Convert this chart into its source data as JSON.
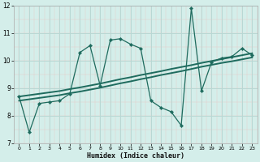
{
  "xlabel": "Humidex (Indice chaleur)",
  "xlim": [
    -0.5,
    23.5
  ],
  "ylim": [
    7,
    12
  ],
  "yticks": [
    7,
    8,
    9,
    10,
    11,
    12
  ],
  "xticks": [
    0,
    1,
    2,
    3,
    4,
    5,
    6,
    7,
    8,
    9,
    10,
    11,
    12,
    13,
    14,
    15,
    16,
    17,
    18,
    19,
    20,
    21,
    22,
    23
  ],
  "bg_color": "#d4eeea",
  "grid_major_color": "#b8d8d4",
  "grid_minor_color": "#c8e4e0",
  "line_color": "#1e6b5e",
  "series_wavy": {
    "x": [
      0,
      1,
      2,
      3,
      4,
      5,
      6,
      7,
      8,
      9,
      10,
      11,
      12,
      13,
      14,
      15,
      16,
      17,
      18,
      19,
      20,
      21,
      22,
      23
    ],
    "y": [
      8.7,
      7.4,
      8.45,
      8.5,
      8.55,
      8.8,
      10.3,
      10.55,
      9.1,
      10.75,
      10.8,
      10.6,
      10.45,
      8.55,
      8.3,
      8.15,
      7.65,
      11.9,
      8.9,
      9.95,
      10.1,
      10.15,
      10.45,
      10.2
    ]
  },
  "series_trend1": {
    "x": [
      0,
      1,
      2,
      3,
      4,
      5,
      6,
      7,
      8,
      9,
      10,
      11,
      12,
      13,
      14,
      15,
      16,
      17,
      18,
      19,
      20,
      21,
      22,
      23
    ],
    "y": [
      8.55,
      8.6,
      8.65,
      8.7,
      8.75,
      8.82,
      8.88,
      8.95,
      9.02,
      9.1,
      9.18,
      9.25,
      9.33,
      9.4,
      9.48,
      9.55,
      9.62,
      9.7,
      9.78,
      9.85,
      9.92,
      9.98,
      10.05,
      10.12
    ]
  },
  "series_trend2": {
    "x": [
      0,
      1,
      2,
      3,
      4,
      5,
      6,
      7,
      8,
      9,
      10,
      11,
      12,
      13,
      14,
      15,
      16,
      17,
      18,
      19,
      20,
      21,
      22,
      23
    ],
    "y": [
      8.7,
      8.75,
      8.8,
      8.85,
      8.9,
      8.97,
      9.03,
      9.1,
      9.17,
      9.25,
      9.33,
      9.4,
      9.48,
      9.55,
      9.62,
      9.7,
      9.77,
      9.84,
      9.92,
      9.99,
      10.06,
      10.13,
      10.2,
      10.27
    ]
  }
}
